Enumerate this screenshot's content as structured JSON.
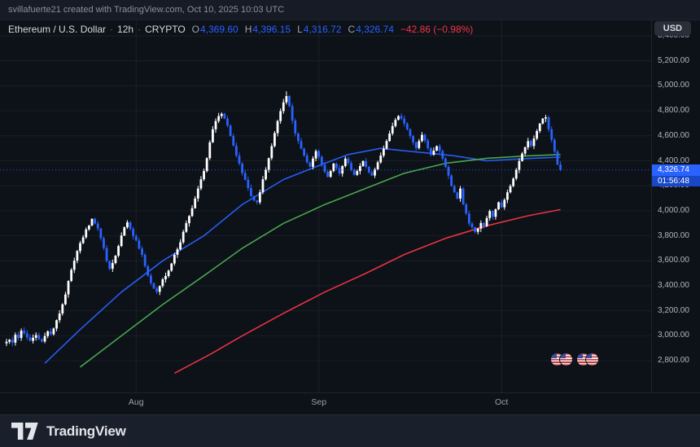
{
  "attribution": "svillafuerte21 created with TradingView.com, Oct 10, 2025 10:03 UTC",
  "toolbar": {
    "currency_button": "USD"
  },
  "legend": {
    "symbol": "Ethereum / U.S. Dollar",
    "interval": "12h",
    "market": "CRYPTO",
    "sep": "·",
    "ohlc": [
      {
        "k": "O",
        "v": "4,369.60"
      },
      {
        "k": "H",
        "v": "4,396.15"
      },
      {
        "k": "L",
        "v": "4,316.72"
      },
      {
        "k": "C",
        "v": "4,326.74"
      }
    ],
    "change": "−42.86 (−0.98%)"
  },
  "price_axis": {
    "labels": [
      "5,400.00",
      "5,200.00",
      "5,000.00",
      "4,800.00",
      "4,600.00",
      "4,400.00",
      "4,200.00",
      "4,000.00",
      "3,800.00",
      "3,600.00",
      "3,400.00",
      "3,200.00",
      "3,000.00",
      "2,800.00"
    ],
    "last_price_label": "4,326.74",
    "countdown": "01:56:48"
  },
  "time_axis": {
    "ticks": [
      {
        "label": "Aug",
        "index": 44
      },
      {
        "label": "Sep",
        "index": 106
      },
      {
        "label": "Oct",
        "index": 168
      }
    ]
  },
  "footer": {
    "brand": "TradingView",
    "logo": "tradingview-17-mark"
  },
  "colors": {
    "bg": "#0d1118",
    "panel": "#161b26",
    "footer_bg": "#1a1f2c",
    "candle_up": "#ffffff",
    "candle_down": "#2962ff",
    "accent": "#2962ff",
    "negative": "#f23645",
    "ma_fast": "#2962ff",
    "ma_mid": "#4caf50",
    "ma_slow": "#f23645",
    "axis_text": "#b2b5be",
    "price_tag_bg": "#2962ff",
    "countdown_bg": "#1848c8"
  },
  "events": {
    "flag_icon": "us-flag",
    "pairs": 2
  },
  "chart_data": {
    "type": "candlestick",
    "title": "Ethereum / U.S. Dollar, 12h, CRYPTO",
    "x_ticks": [
      "Aug",
      "Sep",
      "Oct"
    ],
    "ylim": [
      2750,
      5480
    ],
    "grid": true,
    "change": -42.86,
    "change_pct": -0.98,
    "last_candle": {
      "open": 4369.6,
      "high": 4396.15,
      "low": 4316.72,
      "close": 4326.74
    },
    "open_first": 2940,
    "closes": [
      2952,
      2968,
      2945,
      3008,
      2982,
      3041,
      3019,
      2988,
      2960,
      2984,
      3006,
      2973,
      2954,
      2998,
      3036,
      3012,
      3058,
      3125,
      3178,
      3252,
      3331,
      3438,
      3528,
      3601,
      3678,
      3742,
      3788,
      3851,
      3882,
      3935,
      3898,
      3858,
      3781,
      3702,
      3598,
      3536,
      3582,
      3641,
      3718,
      3802,
      3868,
      3908,
      3855,
      3798,
      3762,
      3698,
      3648,
      3558,
      3482,
      3421,
      3378,
      3352,
      3398,
      3452,
      3478,
      3521,
      3578,
      3648,
      3692,
      3748,
      3832,
      3901,
      3958,
      4021,
      4098,
      4178,
      4252,
      4318,
      4421,
      4548,
      4652,
      4718,
      4758,
      4776,
      4738,
      4682,
      4598,
      4521,
      4442,
      4378,
      4302,
      4248,
      4182,
      4118,
      4082,
      4068,
      4148,
      4252,
      4328,
      4421,
      4518,
      4622,
      4718,
      4798,
      4868,
      4918,
      4838,
      4722,
      4618,
      4558,
      4498,
      4442,
      4388,
      4352,
      4418,
      4478,
      4432,
      4368,
      4312,
      4272,
      4318,
      4378,
      4342,
      4298,
      4358,
      4418,
      4382,
      4328,
      4288,
      4318,
      4358,
      4398,
      4352,
      4308,
      4282,
      4332,
      4388,
      4442,
      4498,
      4558,
      4618,
      4678,
      4728,
      4758,
      4738,
      4698,
      4652,
      4598,
      4548,
      4502,
      4558,
      4608,
      4562,
      4502,
      4448,
      4482,
      4518,
      4478,
      4418,
      4352,
      4282,
      4198,
      4148,
      4098,
      4178,
      4052,
      3978,
      3898,
      3868,
      3832,
      3858,
      3902,
      3878,
      3942,
      3998,
      3952,
      4012,
      4068,
      4028,
      4088,
      4148,
      4198,
      4258,
      4328,
      4398,
      4458,
      4508,
      4558,
      4518,
      4578,
      4638,
      4698,
      4738,
      4748,
      4652,
      4568,
      4475,
      4369.6,
      4326.74
    ],
    "wick_overrides": {
      "29": {
        "high": 3941
      },
      "73": {
        "high": 4788
      },
      "95": {
        "high": 4956
      },
      "159": {
        "low": 3818
      },
      "188": {
        "high": 4396.15,
        "low": 4316.72
      }
    },
    "moving_averages": [
      {
        "name": "ma-fast",
        "color": "#2962ff",
        "points": [
          [
            13,
            2780
          ],
          [
            25,
            3050
          ],
          [
            39,
            3350
          ],
          [
            53,
            3600
          ],
          [
            67,
            3800
          ],
          [
            80,
            4050
          ],
          [
            94,
            4250
          ],
          [
            108,
            4380
          ],
          [
            116,
            4450
          ],
          [
            127,
            4500
          ],
          [
            135,
            4480
          ],
          [
            144,
            4460
          ],
          [
            152,
            4440
          ],
          [
            163,
            4400
          ],
          [
            174,
            4415
          ],
          [
            188,
            4430
          ]
        ]
      },
      {
        "name": "ma-mid",
        "color": "#4caf50",
        "points": [
          [
            25,
            2750
          ],
          [
            39,
            3000
          ],
          [
            53,
            3250
          ],
          [
            67,
            3480
          ],
          [
            80,
            3700
          ],
          [
            94,
            3900
          ],
          [
            108,
            4050
          ],
          [
            122,
            4180
          ],
          [
            135,
            4300
          ],
          [
            149,
            4380
          ],
          [
            163,
            4420
          ],
          [
            177,
            4440
          ],
          [
            188,
            4450
          ]
        ]
      },
      {
        "name": "ma-slow",
        "color": "#f23645",
        "points": [
          [
            57,
            2700
          ],
          [
            69,
            2850
          ],
          [
            80,
            3000
          ],
          [
            94,
            3180
          ],
          [
            108,
            3350
          ],
          [
            122,
            3500
          ],
          [
            135,
            3650
          ],
          [
            149,
            3780
          ],
          [
            163,
            3880
          ],
          [
            177,
            3960
          ],
          [
            188,
            4010
          ]
        ]
      }
    ]
  }
}
